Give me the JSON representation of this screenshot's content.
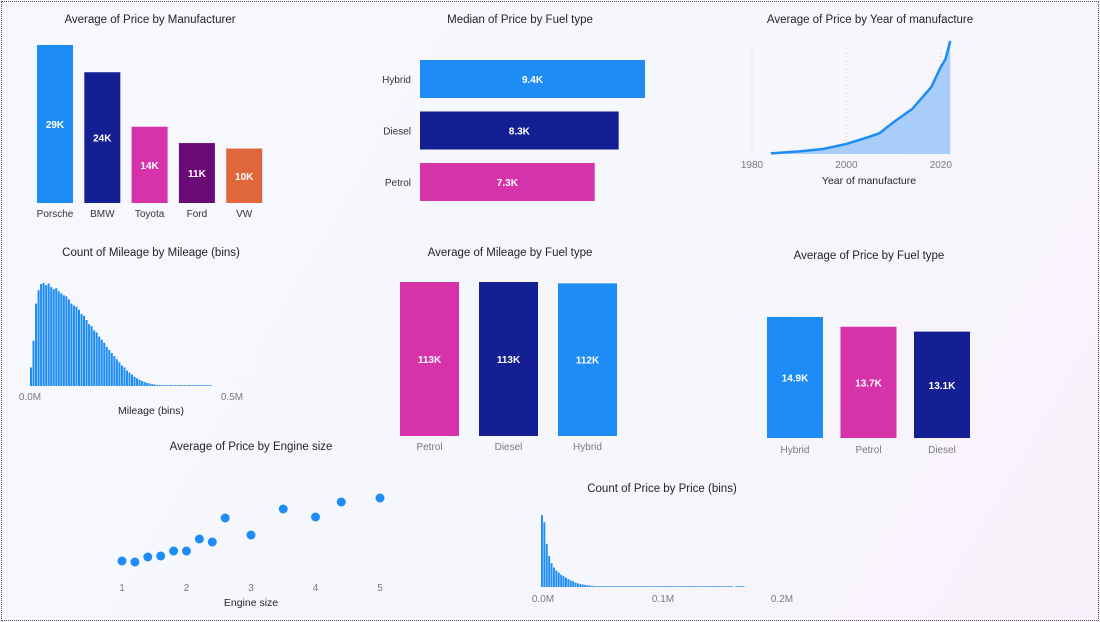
{
  "colors": {
    "blue": "#1E8CF5",
    "navy": "#141F94",
    "magenta": "#D632A9",
    "purple": "#6B0A77",
    "orange": "#E0663C",
    "area": "#A7CDF8",
    "tick": "#7a7a7a"
  },
  "chart_data": [
    {
      "id": "manufacturer",
      "type": "bar",
      "title": "Average of Price by Manufacturer",
      "categories": [
        "Porsche",
        "BMW",
        "Toyota",
        "Ford",
        "VW"
      ],
      "values": [
        29000,
        24000,
        14000,
        11000,
        10000
      ],
      "data_labels": [
        "29K",
        "24K",
        "14K",
        "11K",
        "10K"
      ],
      "bar_colors": [
        "blue",
        "navy",
        "magenta",
        "purple",
        "orange"
      ],
      "grid": false
    },
    {
      "id": "median_fuel",
      "type": "bar",
      "orientation": "horizontal",
      "title": "Median of Price by Fuel type",
      "categories": [
        "Hybrid",
        "Diesel",
        "Petrol"
      ],
      "values": [
        9400,
        8300,
        7300
      ],
      "data_labels": [
        "9.4K",
        "8.3K",
        "7.3K"
      ],
      "bar_colors": [
        "blue",
        "navy",
        "magenta"
      ],
      "grid": false
    },
    {
      "id": "year",
      "type": "area",
      "title": "Average of Price by Year of manufacture",
      "xlabel": "Year of manufacture",
      "x_ticks": [
        "1980",
        "2000",
        "2020"
      ],
      "x": [
        1984,
        1990,
        1995,
        2000,
        2005,
        2007,
        2010,
        2014,
        2018,
        2020,
        2021,
        2022
      ],
      "values": [
        200,
        800,
        1500,
        3000,
        5200,
        6200,
        9500,
        13500,
        20000,
        26000,
        28300,
        33700
      ],
      "grid": true
    },
    {
      "id": "mileage_hist",
      "type": "bar",
      "title": "Count of Mileage by Mileage (bins)",
      "xlabel": "Mileage (bins)",
      "x_ticks": [
        "0.0M",
        "0.5M"
      ],
      "xlim": [
        0,
        500000
      ],
      "bin_width": 6250,
      "values": [
        180,
        440,
        800,
        930,
        990,
        1000,
        980,
        995,
        960,
        940,
        950,
        920,
        900,
        880,
        870,
        840,
        800,
        780,
        770,
        740,
        700,
        680,
        640,
        600,
        580,
        540,
        520,
        480,
        450,
        420,
        380,
        350,
        320,
        290,
        260,
        230,
        200,
        180,
        150,
        130,
        110,
        90,
        75,
        60,
        48,
        38,
        30,
        24,
        18,
        14,
        10,
        8,
        6,
        5,
        4,
        3,
        3,
        2,
        2,
        2,
        1,
        1,
        1,
        1,
        1,
        1,
        1,
        1,
        1,
        1,
        1,
        1
      ]
    },
    {
      "id": "mileage_fuel",
      "type": "bar",
      "title": "Average of Mileage by Fuel type",
      "categories": [
        "Petrol",
        "Diesel",
        "Hybrid"
      ],
      "values": [
        113000,
        113000,
        112000
      ],
      "data_labels": [
        "113K",
        "113K",
        "112K"
      ],
      "bar_colors": [
        "magenta",
        "navy",
        "blue"
      ]
    },
    {
      "id": "price_fuel",
      "type": "bar",
      "title": "Average of Price by Fuel type",
      "categories": [
        "Hybrid",
        "Petrol",
        "Diesel"
      ],
      "values": [
        14900,
        13700,
        13100
      ],
      "data_labels": [
        "14.9K",
        "13.7K",
        "13.1K"
      ],
      "bar_colors": [
        "blue",
        "magenta",
        "navy"
      ]
    },
    {
      "id": "engine",
      "type": "scatter",
      "title": "Average of Price by Engine size",
      "xlabel": "Engine size",
      "x_ticks": [
        "1",
        "2",
        "3",
        "4",
        "5"
      ],
      "x": [
        1.0,
        1.2,
        1.4,
        1.6,
        1.8,
        2.0,
        2.2,
        2.4,
        2.6,
        3.0,
        3.5,
        4.0,
        4.4,
        5.0
      ],
      "values": [
        9500,
        9000,
        11500,
        12000,
        14500,
        14500,
        20500,
        19000,
        31000,
        22500,
        35500,
        31500,
        39000,
        41000
      ]
    },
    {
      "id": "price_hist",
      "type": "bar",
      "title": "Count of Price by Price (bins)",
      "x_ticks": [
        "0.0M",
        "0.1M",
        "0.2M"
      ],
      "xlim": [
        0,
        200000
      ],
      "bin_width": 2000,
      "values": [
        1000,
        900,
        600,
        430,
        330,
        270,
        230,
        200,
        170,
        150,
        130,
        110,
        90,
        80,
        60,
        50,
        40,
        35,
        30,
        25,
        20,
        15,
        12,
        10,
        8,
        7,
        6,
        6,
        5,
        5,
        5,
        5,
        5,
        5,
        5,
        5,
        5,
        5,
        5,
        5,
        5,
        5,
        5,
        5,
        5,
        5,
        5,
        5,
        5,
        5,
        5,
        5,
        5,
        5,
        5,
        5,
        5,
        5,
        5,
        5,
        5,
        5,
        5,
        5,
        5,
        5,
        5,
        5,
        5,
        5,
        5,
        5,
        5,
        5,
        5,
        5,
        5,
        5,
        5,
        5,
        0,
        5,
        5,
        5,
        5
      ]
    }
  ]
}
